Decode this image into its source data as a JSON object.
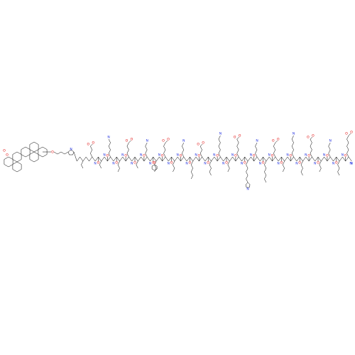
{
  "atoms": {
    "oxygen": "O",
    "nitrogen": "N",
    "hydrogen_nitrogen": "NH"
  }
}
